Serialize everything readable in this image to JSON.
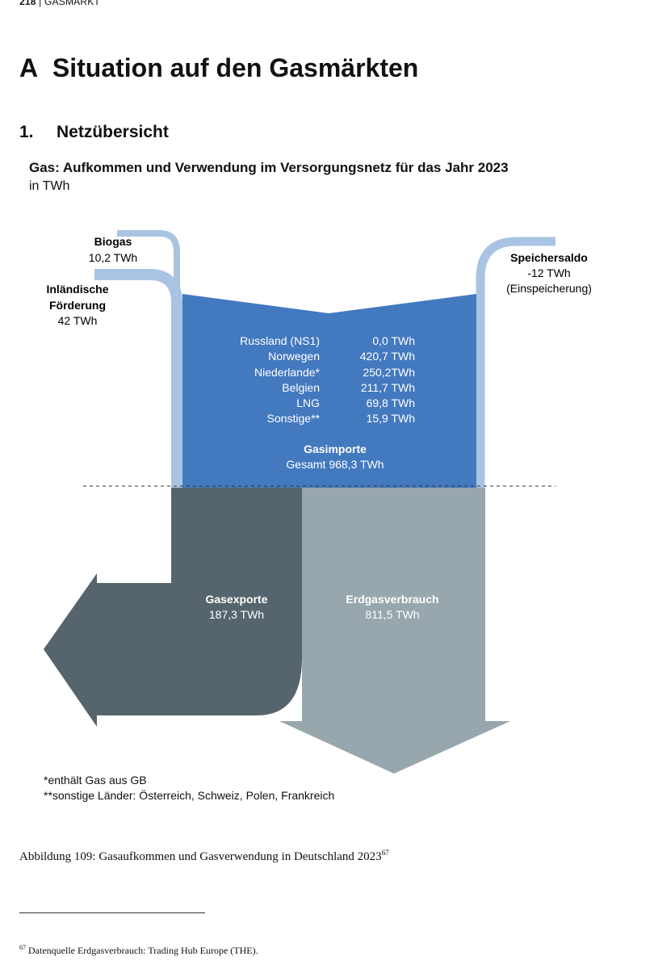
{
  "header": {
    "page_number": "218",
    "section": "GASMARKT"
  },
  "title": {
    "letter": "A",
    "text": "Situation auf den Gasmärkten"
  },
  "subtitle": {
    "number": "1.",
    "text": "Netzübersicht"
  },
  "figure": {
    "title": "Gas: Aufkommen und Verwendung im Versorgungsnetz für das Jahr 2023",
    "unit": "in TWh",
    "biogas": {
      "name": "Biogas",
      "value": "10,2 TWh"
    },
    "inland": {
      "name_line1": "Inländische",
      "name_line2": "Förderung",
      "value": "42 TWh"
    },
    "storage": {
      "name": "Speichersaldo",
      "value": "-12 TWh",
      "note": "(Einspeicherung)"
    },
    "imports": {
      "rows": [
        {
          "country": "Russland (NS1)",
          "value": "0,0 TWh"
        },
        {
          "country": "Norwegen",
          "value": "420,7 TWh"
        },
        {
          "country": "Niederlande*",
          "value": "250,2TWh"
        },
        {
          "country": "Belgien",
          "value": "211,7 TWh"
        },
        {
          "country": "LNG",
          "value": "69,8 TWh"
        },
        {
          "country": "Sonstige**",
          "value": "15,9 TWh"
        }
      ],
      "title": "Gasimporte",
      "total": "Gesamt 968,3 TWh"
    },
    "exports": {
      "name": "Gasexporte",
      "value": "187,3 TWh"
    },
    "consumption": {
      "name": "Erdgasverbrauch",
      "value": "811,5 TWh"
    },
    "colors": {
      "import_blue": "#4379bf",
      "light_blue": "#a9c4e2",
      "export_dark": "#56656d",
      "consumption_gray": "#98a6ad"
    }
  },
  "notes": {
    "note1": "*enthält Gas aus GB",
    "note2": "**sonstige Länder: Österreich, Schweiz, Polen, Frankreich"
  },
  "caption": {
    "text": "Abbildung 109: Gasaufkommen und Gasverwendung in Deutschland 2023",
    "ref": "67"
  },
  "footnote": {
    "ref": "67",
    "text": "Datenquelle Erdgasverbrauch: Trading Hub Europe (THE)."
  }
}
